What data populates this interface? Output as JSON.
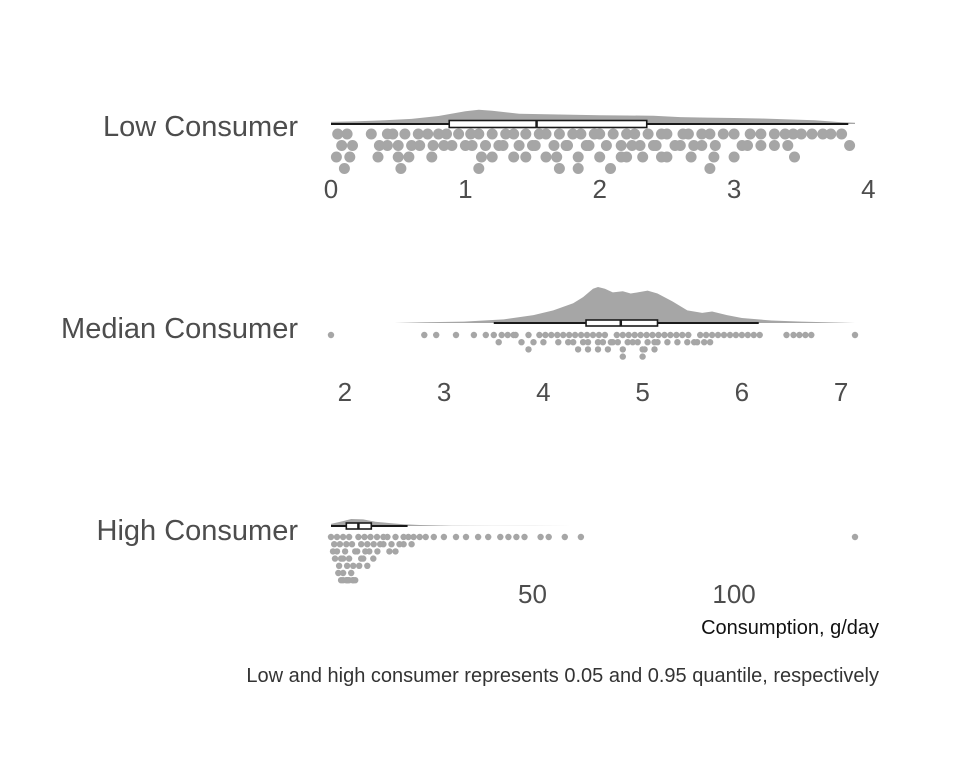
{
  "chart_data": {
    "type": "raincloud",
    "xlabel": "Consumption, g/day",
    "caption": "Low and high consumer represents 0.05 and 0.95 quantile, respectively",
    "colors": {
      "cloud": "#a6a6a6",
      "rain": "#a6a6a6",
      "box_stroke": "#1a1a1a"
    },
    "grid": false,
    "panels": [
      {
        "name": "Low Consumer",
        "xlim": [
          0,
          3.9
        ],
        "ticks": [
          0,
          1,
          2,
          3,
          4
        ],
        "tick_labels": [
          "0",
          "1",
          "2",
          "3",
          "4"
        ],
        "density": [
          [
            0,
            0.09
          ],
          [
            0.2,
            0.12
          ],
          [
            0.4,
            0.16
          ],
          [
            0.6,
            0.22
          ],
          [
            0.8,
            0.35
          ],
          [
            1.0,
            0.55
          ],
          [
            1.1,
            0.62
          ],
          [
            1.2,
            0.58
          ],
          [
            1.4,
            0.45
          ],
          [
            1.6,
            0.42
          ],
          [
            1.8,
            0.4
          ],
          [
            2.0,
            0.38
          ],
          [
            2.2,
            0.37
          ],
          [
            2.4,
            0.36
          ],
          [
            2.6,
            0.3
          ],
          [
            2.8,
            0.28
          ],
          [
            3.0,
            0.26
          ],
          [
            3.2,
            0.24
          ],
          [
            3.4,
            0.2
          ],
          [
            3.6,
            0.16
          ],
          [
            3.8,
            0.08
          ],
          [
            3.9,
            0.05
          ]
        ],
        "box": {
          "min": 0,
          "q1": 0.88,
          "median": 1.53,
          "q3": 2.35,
          "max": 3.85
        },
        "points": [
          0.05,
          0.08,
          0.12,
          0.16,
          0.3,
          0.36,
          0.42,
          0.46,
          0.5,
          0.55,
          0.6,
          0.65,
          0.72,
          0.76,
          0.8,
          0.86,
          0.9,
          0.95,
          1.0,
          1.04,
          1.1,
          1.15,
          1.2,
          1.25,
          1.3,
          1.36,
          1.4,
          1.45,
          1.5,
          1.55,
          1.6,
          1.66,
          1.7,
          1.75,
          1.8,
          1.86,
          1.9,
          1.96,
          2.0,
          2.05,
          2.1,
          2.16,
          2.2,
          2.26,
          2.3,
          2.36,
          2.4,
          2.46,
          2.5,
          2.56,
          2.62,
          2.66,
          2.7,
          2.76,
          2.82,
          2.86,
          2.92,
          3.0,
          3.06,
          3.12,
          3.2,
          3.3,
          3.38,
          3.44,
          3.5,
          3.58,
          3.66,
          3.72,
          3.8,
          3.86,
          0.04,
          0.1,
          0.14,
          0.35,
          0.42,
          0.5,
          0.58,
          0.66,
          0.75,
          0.84,
          1.05,
          1.12,
          1.2,
          1.28,
          1.36,
          1.45,
          1.52,
          1.6,
          1.68,
          1.76,
          1.84,
          1.92,
          2.0,
          2.08,
          2.16,
          2.24,
          2.32,
          2.42,
          2.5,
          2.6,
          2.68,
          2.76,
          2.85,
          3.0,
          3.1,
          3.2,
          3.3,
          3.4,
          3.45,
          0.52,
          1.1,
          1.7,
          1.84,
          2.2,
          2.46,
          2.82
        ]
      },
      {
        "name": "Median Consumer",
        "xlim": [
          1.86,
          7.14
        ],
        "ticks": [
          2,
          3,
          4,
          5,
          6,
          7
        ],
        "tick_labels": [
          "2",
          "3",
          "4",
          "5",
          "6",
          "7"
        ],
        "density": [
          [
            1.86,
            0.0
          ],
          [
            2.5,
            0.0
          ],
          [
            2.8,
            0.02
          ],
          [
            3.2,
            0.04
          ],
          [
            3.6,
            0.1
          ],
          [
            3.9,
            0.22
          ],
          [
            4.1,
            0.35
          ],
          [
            4.3,
            0.55
          ],
          [
            4.4,
            0.72
          ],
          [
            4.5,
            0.95
          ],
          [
            4.55,
            1.0
          ],
          [
            4.62,
            0.95
          ],
          [
            4.7,
            0.85
          ],
          [
            4.8,
            0.88
          ],
          [
            4.88,
            0.82
          ],
          [
            4.95,
            0.85
          ],
          [
            5.05,
            0.9
          ],
          [
            5.15,
            0.82
          ],
          [
            5.3,
            0.6
          ],
          [
            5.45,
            0.35
          ],
          [
            5.6,
            0.28
          ],
          [
            5.7,
            0.32
          ],
          [
            5.85,
            0.22
          ],
          [
            6.0,
            0.14
          ],
          [
            6.3,
            0.07
          ],
          [
            6.6,
            0.04
          ],
          [
            7.0,
            0.01
          ],
          [
            7.14,
            0.0
          ]
        ],
        "box": {
          "min": 3.5,
          "q1": 4.43,
          "median": 4.78,
          "q3": 5.15,
          "max": 6.17
        },
        "points": [
          1.86,
          2.8,
          2.92,
          3.12,
          3.3,
          3.42,
          3.5,
          3.58,
          3.64,
          3.72,
          3.78,
          3.85,
          3.9,
          3.96,
          4.02,
          4.08,
          4.14,
          4.2,
          4.26,
          4.32,
          4.38,
          4.44,
          4.5,
          4.56,
          4.62,
          4.68,
          4.74,
          4.8,
          4.86,
          4.92,
          4.98,
          5.04,
          5.1,
          5.16,
          5.22,
          5.28,
          5.34,
          5.4,
          5.46,
          5.52,
          5.58,
          5.64,
          5.7,
          5.76,
          5.82,
          5.88,
          5.94,
          6.0,
          6.06,
          6.12,
          6.18,
          6.45,
          6.52,
          6.58,
          6.64,
          6.7,
          7.14,
          3.55,
          3.7,
          3.85,
          4.0,
          4.15,
          4.3,
          4.45,
          4.55,
          4.65,
          4.75,
          4.85,
          4.95,
          5.05,
          5.15,
          5.25,
          5.35,
          5.45,
          5.55,
          5.62,
          5.68,
          4.25,
          4.35,
          4.45,
          4.55,
          4.7,
          4.8,
          4.9,
          5.0,
          5.12,
          4.4,
          4.6,
          4.8,
          5.0,
          5.12,
          5.02
        ]
      },
      {
        "name": "High Consumer",
        "xlim": [
          0,
          130
        ],
        "ticks": [
          50,
          100
        ],
        "tick_labels": [
          "50",
          "100"
        ],
        "density": [
          [
            0,
            0.3
          ],
          [
            3,
            0.7
          ],
          [
            5,
            1.0
          ],
          [
            8,
            0.95
          ],
          [
            11,
            0.6
          ],
          [
            15,
            0.4
          ],
          [
            18,
            0.25
          ],
          [
            22,
            0.15
          ],
          [
            26,
            0.08
          ],
          [
            30,
            0.04
          ],
          [
            40,
            0.02
          ],
          [
            50,
            0.01
          ],
          [
            60,
            0.0
          ],
          [
            130,
            0.0
          ]
        ],
        "box": {
          "min": 0,
          "q1": 3.8,
          "median": 6.8,
          "q3": 10.0,
          "max": 19.0
        },
        "points": [
          0,
          0.8,
          1.5,
          2.2,
          3,
          3.8,
          4.5,
          5.2,
          6,
          6.8,
          7.5,
          8.3,
          9,
          9.8,
          10.6,
          11.4,
          12.2,
          13,
          14,
          15,
          16,
          17,
          18,
          19.2,
          20.5,
          22,
          23.5,
          25.5,
          28,
          31,
          33.5,
          36.5,
          39,
          42,
          44,
          46,
          48,
          52,
          54,
          58,
          62,
          130,
          0.5,
          1.5,
          2.5,
          3.5,
          4.5,
          5.5,
          6.5,
          7.5,
          8.5,
          9.5,
          10.5,
          11.5,
          13,
          14.5,
          16,
          18,
          20,
          1,
          2,
          3,
          4,
          5,
          6,
          7,
          8,
          9,
          1.8,
          3,
          4.2,
          5.4,
          2.5,
          4,
          5.5,
          3,
          4.5,
          3.8
        ]
      }
    ]
  }
}
